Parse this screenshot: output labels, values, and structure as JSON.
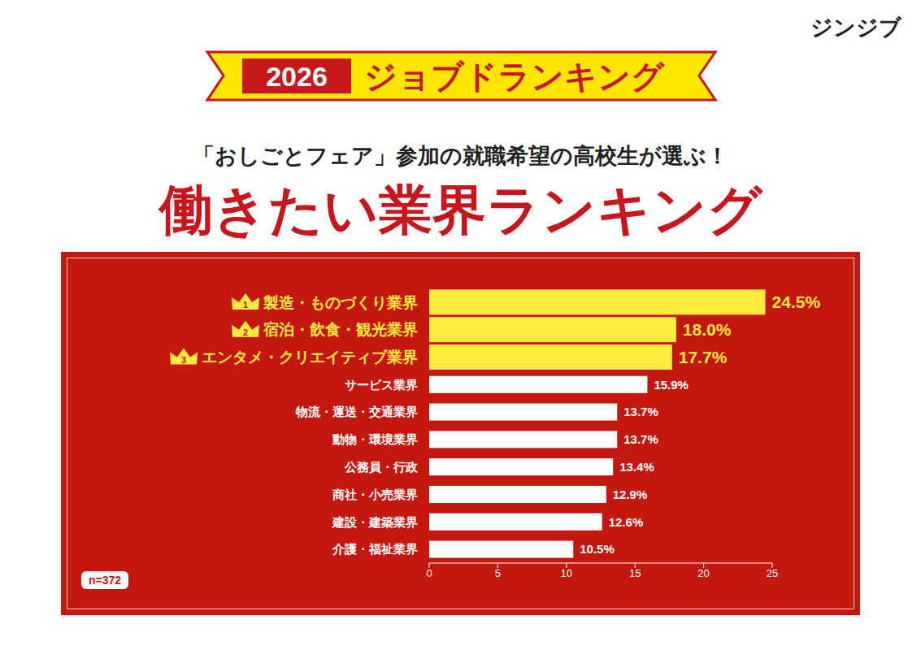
{
  "brand": "ジンジブ",
  "banner": {
    "year": "2026",
    "name": "ジョブドランキング"
  },
  "chart_data": {
    "type": "bar",
    "orientation": "horizontal",
    "title": "働きたい業界ランキング",
    "subtitle": "「おしごとフェア」参加の就職希望の高校生が選ぶ！",
    "categories": [
      "製造・ものづくり業界",
      "宿泊・飲食・観光業界",
      "エンタメ・クリエイティブ業界",
      "サービス業界",
      "物流・運送・交通業界",
      "動物・環境業界",
      "公務員・行政",
      "商社・小売業界",
      "建設・建築業界",
      "介護・福祉業界"
    ],
    "values": [
      24.5,
      18.0,
      17.7,
      15.9,
      13.7,
      13.7,
      13.4,
      12.9,
      12.6,
      10.5
    ],
    "value_labels": [
      "24.5%",
      "18.0%",
      "17.7%",
      "15.9%",
      "13.7%",
      "13.7%",
      "13.4%",
      "12.9%",
      "12.6%",
      "10.5%"
    ],
    "colors": [
      "#ffeb3b",
      "#ffeb3b",
      "#ffeb3b",
      "#ffffff",
      "#ffffff",
      "#ffffff",
      "#ffffff",
      "#ffffff",
      "#ffffff",
      "#ffffff"
    ],
    "rank_labels": [
      "1",
      "2",
      "3"
    ],
    "annotations": [
      "n=372"
    ],
    "xlim": [
      0,
      25
    ],
    "xticks": [
      0,
      5,
      10,
      15,
      20,
      25
    ],
    "data_labels": true,
    "grid": false
  }
}
